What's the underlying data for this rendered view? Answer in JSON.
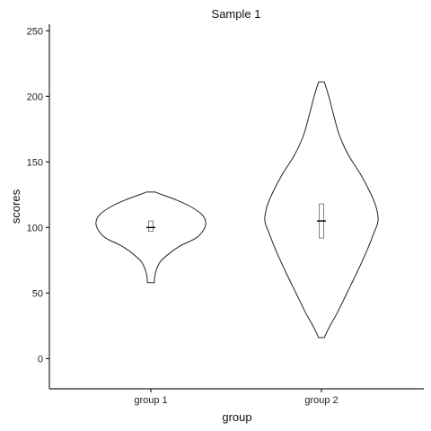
{
  "chart_data": {
    "type": "violin",
    "title": "Sample 1",
    "xlabel": "group",
    "ylabel": "scores",
    "ylim": [
      -23,
      255
    ],
    "yticks": [
      0,
      50,
      100,
      150,
      200,
      250
    ],
    "categories": [
      "group 1",
      "group 2"
    ],
    "grid": false,
    "legend": "none",
    "violins": [
      {
        "category": "group 1",
        "min": 58,
        "max": 127,
        "q1": 97,
        "median": 100,
        "q3": 105,
        "profile": [
          [
            58,
            0.06
          ],
          [
            63,
            0.07
          ],
          [
            68,
            0.1
          ],
          [
            74,
            0.17
          ],
          [
            80,
            0.32
          ],
          [
            86,
            0.52
          ],
          [
            92,
            0.8
          ],
          [
            98,
            0.93
          ],
          [
            104,
            0.97
          ],
          [
            110,
            0.9
          ],
          [
            116,
            0.7
          ],
          [
            121,
            0.45
          ],
          [
            125,
            0.2
          ],
          [
            127,
            0.08
          ]
        ]
      },
      {
        "category": "group 2",
        "min": 16,
        "max": 211,
        "q1": 92,
        "median": 105,
        "q3": 118,
        "profile": [
          [
            16,
            0.05
          ],
          [
            25,
            0.15
          ],
          [
            35,
            0.28
          ],
          [
            50,
            0.45
          ],
          [
            65,
            0.62
          ],
          [
            80,
            0.78
          ],
          [
            95,
            0.92
          ],
          [
            105,
            1.0
          ],
          [
            115,
            0.97
          ],
          [
            125,
            0.88
          ],
          [
            140,
            0.7
          ],
          [
            155,
            0.48
          ],
          [
            170,
            0.32
          ],
          [
            185,
            0.22
          ],
          [
            200,
            0.13
          ],
          [
            211,
            0.05
          ]
        ]
      }
    ]
  },
  "style": {
    "line_color": "#222222",
    "background": "#ffffff"
  }
}
